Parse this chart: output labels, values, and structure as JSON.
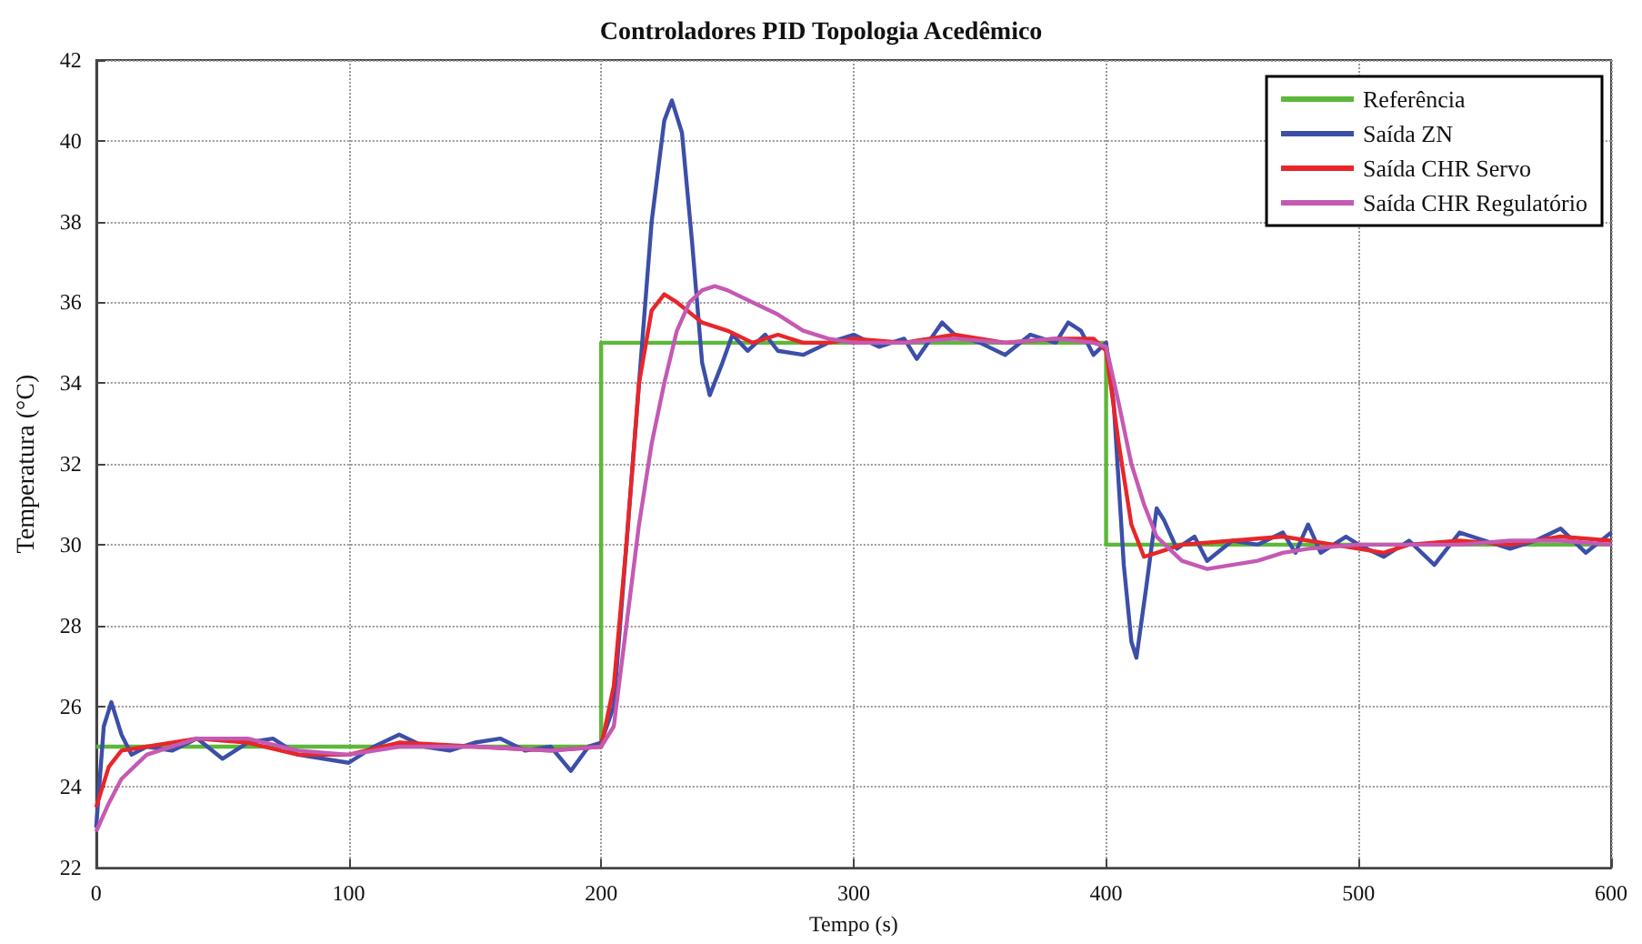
{
  "chart_data": {
    "type": "line",
    "title": "Controladores PID Topologia Acedêmico",
    "xlabel": "Tempo (s)",
    "ylabel": "Temperatura (°C)",
    "xlim": [
      0,
      600
    ],
    "xticks": [
      0,
      100,
      200,
      300,
      400,
      500,
      600
    ],
    "ylim": [
      22,
      42
    ],
    "yticks": [
      22,
      24,
      26,
      28,
      30,
      32,
      34,
      36,
      38,
      40,
      42
    ],
    "grid": true,
    "legend": "top right",
    "marker": "none",
    "series": [
      {
        "name": "Referência",
        "color": "#5cb83a",
        "x": [
          0,
          200,
          200,
          400,
          400,
          600
        ],
        "values": [
          25,
          25,
          35,
          35,
          30,
          30
        ]
      },
      {
        "name": "Saída ZN",
        "color": "#3c4fa8",
        "x": [
          0,
          3,
          6,
          10,
          14,
          20,
          30,
          40,
          50,
          60,
          70,
          80,
          90,
          100,
          110,
          120,
          130,
          140,
          150,
          160,
          170,
          180,
          188,
          195,
          200,
          205,
          210,
          215,
          220,
          225,
          228,
          232,
          236,
          240,
          243,
          248,
          252,
          258,
          265,
          270,
          280,
          290,
          300,
          310,
          320,
          325,
          335,
          340,
          350,
          360,
          370,
          380,
          385,
          390,
          395,
          400,
          403,
          407,
          410,
          412,
          416,
          420,
          423,
          428,
          435,
          440,
          450,
          460,
          470,
          475,
          480,
          485,
          495,
          500,
          510,
          520,
          530,
          540,
          550,
          560,
          570,
          580,
          590,
          600
        ],
        "values": [
          23.0,
          25.5,
          26.1,
          25.3,
          24.8,
          25.0,
          24.9,
          25.2,
          24.7,
          25.1,
          25.2,
          24.8,
          24.7,
          24.6,
          25.0,
          25.3,
          25.0,
          24.9,
          25.1,
          25.2,
          24.9,
          25.0,
          24.4,
          25.0,
          25.1,
          26,
          30,
          34,
          38,
          40.5,
          41.0,
          40.2,
          37.5,
          34.5,
          33.7,
          34.5,
          35.2,
          34.8,
          35.2,
          34.8,
          34.7,
          35.0,
          35.2,
          34.9,
          35.1,
          34.6,
          35.5,
          35.2,
          35.0,
          34.7,
          35.2,
          35.0,
          35.5,
          35.3,
          34.7,
          35.0,
          33.5,
          29.5,
          27.6,
          27.2,
          29,
          30.9,
          30.6,
          29.9,
          30.2,
          29.6,
          30.1,
          30.0,
          30.3,
          29.8,
          30.5,
          29.8,
          30.2,
          30.0,
          29.7,
          30.1,
          29.5,
          30.3,
          30.1,
          29.9,
          30.1,
          30.4,
          29.8,
          30.3
        ]
      },
      {
        "name": "Saída CHR Servo",
        "color": "#e8262a",
        "x": [
          0,
          5,
          10,
          20,
          40,
          60,
          80,
          100,
          120,
          150,
          180,
          200,
          205,
          210,
          215,
          220,
          225,
          230,
          240,
          250,
          260,
          270,
          280,
          290,
          300,
          320,
          340,
          360,
          380,
          395,
          400,
          405,
          410,
          415,
          420,
          430,
          450,
          470,
          490,
          510,
          520,
          540,
          560,
          580,
          600
        ],
        "values": [
          23.5,
          24.5,
          24.9,
          25.0,
          25.2,
          25.1,
          24.8,
          24.8,
          25.1,
          25.0,
          24.9,
          25.0,
          26.5,
          30,
          34,
          35.8,
          36.2,
          36.0,
          35.5,
          35.3,
          35.0,
          35.2,
          35.0,
          35.0,
          35.1,
          35.0,
          35.2,
          35.0,
          35.1,
          35.1,
          34.8,
          32.5,
          30.5,
          29.7,
          29.8,
          30.0,
          30.1,
          30.2,
          30.0,
          29.8,
          30.0,
          30.1,
          30.0,
          30.2,
          30.1
        ]
      },
      {
        "name": "Saída CHR Regulatório",
        "color": "#c45ab3",
        "x": [
          0,
          5,
          10,
          20,
          30,
          40,
          60,
          80,
          100,
          120,
          150,
          180,
          200,
          205,
          210,
          215,
          220,
          225,
          230,
          235,
          240,
          245,
          250,
          260,
          270,
          280,
          290,
          300,
          320,
          340,
          360,
          380,
          395,
          400,
          405,
          410,
          415,
          420,
          430,
          440,
          450,
          460,
          470,
          480,
          500,
          520,
          540,
          560,
          580,
          600
        ],
        "values": [
          22.9,
          23.6,
          24.2,
          24.8,
          25.0,
          25.2,
          25.2,
          24.9,
          24.8,
          25.0,
          25.0,
          24.9,
          25.0,
          25.5,
          28,
          30.5,
          32.5,
          34,
          35.3,
          36,
          36.3,
          36.4,
          36.3,
          36.0,
          35.7,
          35.3,
          35.1,
          35.0,
          35.0,
          35.1,
          35.0,
          35.1,
          35.0,
          34.9,
          33.5,
          32,
          31,
          30.2,
          29.6,
          29.4,
          29.5,
          29.6,
          29.8,
          29.9,
          30.0,
          30.0,
          30.0,
          30.1,
          30.1,
          30.0
        ]
      }
    ]
  }
}
